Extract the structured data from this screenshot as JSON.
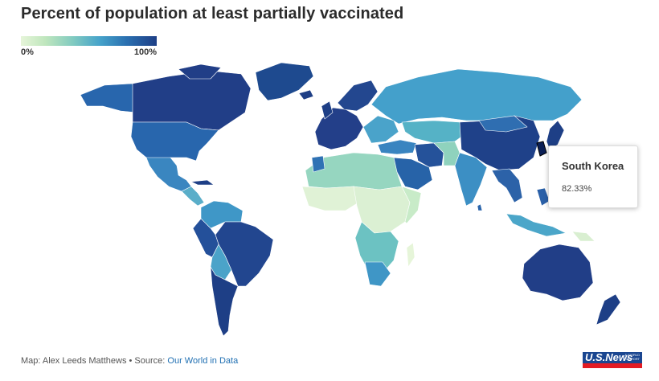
{
  "title": "Percent of population at least partially vaccinated",
  "legend": {
    "min_label": "0%",
    "max_label": "100%"
  },
  "colors": {
    "low": "#e6f5d9",
    "mid": "#46a3ca",
    "high": "#1e3f86",
    "nodata": "#d9d9d9"
  },
  "tooltip": {
    "country": "South Korea",
    "value": "82.33%"
  },
  "footer": {
    "credit": "Map: Alex Leeds Matthews • Source: ",
    "source_link": "Our World in Data"
  },
  "logo": {
    "text": "U.S.News",
    "small": "& WORLD REPORT"
  }
}
